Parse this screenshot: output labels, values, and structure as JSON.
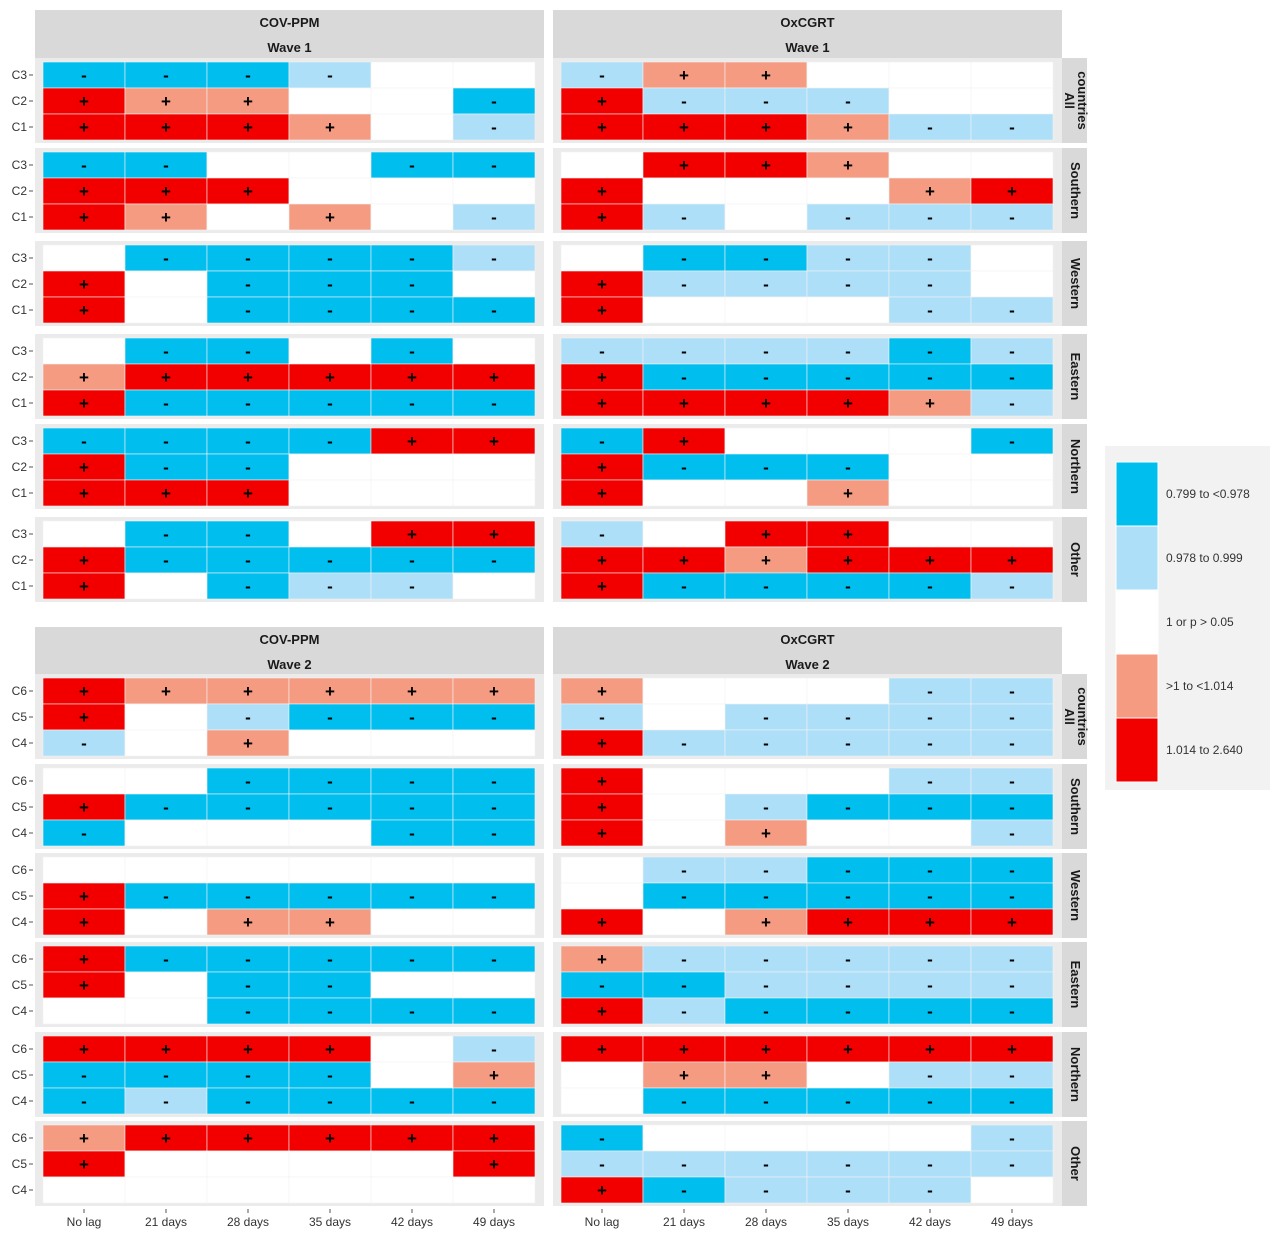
{
  "chart_data": {
    "type": "heatmap",
    "x_categories": [
      "No lag",
      "21 days",
      "28 days",
      "35 days",
      "42 days",
      "49 days"
    ],
    "regions": [
      "All countries",
      "Southern",
      "Western",
      "Eastern",
      "Northern",
      "Other"
    ],
    "colors": {
      "strong_neg": "#00BFEF",
      "weak_neg": "#ADDFF9",
      "none": "#FFFFFF",
      "weak_pos": "#F59B82",
      "strong_pos": "#F20000",
      "strip_bg": "#D9D9D9",
      "panel_bg": "#EBEBEB"
    },
    "legend": {
      "items": [
        {
          "key": "strong_neg",
          "label": "0.799 to <0.978"
        },
        {
          "key": "weak_neg",
          "label": "0.978 to 0.999"
        },
        {
          "key": "none",
          "label": "1 or p > 0.05"
        },
        {
          "key": "weak_pos",
          "label": ">1 to <1.014"
        },
        {
          "key": "strong_pos",
          "label": "1.014 to 2.640"
        }
      ]
    },
    "code_map": {
      "B": "strong_neg",
      "L": "weak_neg",
      "W": "none",
      "P": "weak_pos",
      "R": "strong_pos"
    },
    "blocks": [
      {
        "wave": "Wave 1",
        "rows": [
          "C3",
          "C2",
          "C1"
        ],
        "panels": [
          {
            "title": "COV-PPM",
            "regions": [
              [
                "BBBLWW",
                "RPPWWB",
                "RRRPWL"
              ],
              [
                "BBWWBB",
                "RRRWWW",
                "RPWPWL"
              ],
              [
                "WBBBBL",
                "RWBBBW",
                "RWBBBB"
              ],
              [
                "WBBWBW",
                "PRRRRR",
                "RBBBBB"
              ],
              [
                "BBBBRR",
                "RBBWWW",
                "RRRWWW"
              ],
              [
                "WBBWRR",
                "RBBBBB",
                "RWBLLW"
              ]
            ]
          },
          {
            "title": "OxCGRT",
            "regions": [
              [
                "LPPWWW",
                "RLLLWW",
                "RRRPLL"
              ],
              [
                "WRRPWW",
                "RWWWPR",
                "RLWLLL"
              ],
              [
                "WBBLLW",
                "RLLLLW",
                "RWWWLL"
              ],
              [
                "LLLLBL",
                "RBBBBB",
                "RRRRPL"
              ],
              [
                "BRWWWB",
                "RBBBWW",
                "RWWPWW"
              ],
              [
                "LWRRWW",
                "RRPRRR",
                "RBBBBL"
              ]
            ]
          }
        ]
      },
      {
        "wave": "Wave 2",
        "rows": [
          "C6",
          "C5",
          "C4"
        ],
        "panels": [
          {
            "title": "COV-PPM",
            "regions": [
              [
                "RPPPPP",
                "RWLBBB",
                "LWPWWW"
              ],
              [
                "WWBBBB",
                "RBBBBB",
                "BWWWBB"
              ],
              [
                "WWWWWW",
                "RBBBBB",
                "RWPPWW"
              ],
              [
                "RBBBBB",
                "RWBBWW",
                "WWBBBB"
              ],
              [
                "RRRRWL",
                "BBBBWP",
                "BLBBBB"
              ],
              [
                "PRRRRR",
                "RWWWWR",
                "WWWWWW"
              ]
            ]
          },
          {
            "title": "OxCGRT",
            "regions": [
              [
                "PWWWLL",
                "LWLLLL",
                "RLLLLL"
              ],
              [
                "RWWWLL",
                "RWLBBB",
                "RWPWWL"
              ],
              [
                "WLLBBB",
                "WBBBBB",
                "RWPRRR"
              ],
              [
                "PLLLLL",
                "BBLLLL",
                "RLBBBB"
              ],
              [
                "RRRRRR",
                "WPPWLL",
                "WBBBBB"
              ],
              [
                "BWWWWL",
                "LLLLLL",
                "RBLLLW"
              ]
            ]
          }
        ]
      }
    ]
  }
}
